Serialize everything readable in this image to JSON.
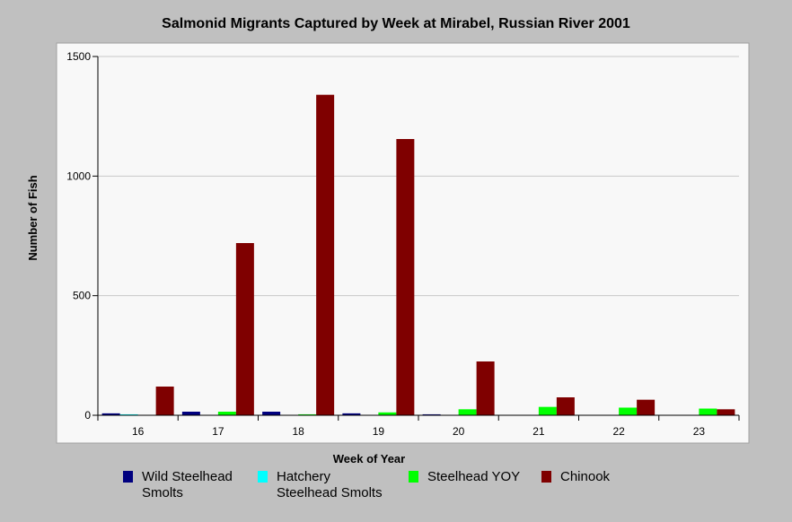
{
  "chart_data": {
    "type": "bar",
    "title": "Salmonid Migrants Captured by Week at Mirabel, Russian River 2001",
    "xlabel": "Week of Year",
    "ylabel": "Number of Fish",
    "ylim": [
      0,
      1500
    ],
    "yticks": [
      0,
      500,
      1000,
      1500
    ],
    "grid": true,
    "legend_position": "bottom",
    "categories": [
      "16",
      "17",
      "18",
      "19",
      "20",
      "21",
      "22",
      "23"
    ],
    "series": [
      {
        "name": "Wild Steelhead Smolts",
        "label_lines": [
          "Wild Steelhead",
          "Smolts"
        ],
        "color": "#00007f",
        "values": [
          8,
          15,
          15,
          8,
          4,
          0,
          0,
          0
        ]
      },
      {
        "name": "Hatchery Steelhead Smolts",
        "label_lines": [
          "Hatchery",
          "Steelhead Smolts"
        ],
        "color": "#00ffff",
        "values": [
          4,
          0,
          0,
          0,
          0,
          0,
          0,
          0
        ]
      },
      {
        "name": "Steelhead YOY",
        "label_lines": [
          "Steelhead YOY"
        ],
        "color": "#00ff00",
        "values": [
          0,
          15,
          4,
          12,
          25,
          35,
          32,
          28
        ]
      },
      {
        "name": "Chinook",
        "label_lines": [
          "Chinook"
        ],
        "color": "#7f0000",
        "values": [
          120,
          720,
          1340,
          1155,
          225,
          75,
          65,
          25
        ]
      }
    ]
  }
}
